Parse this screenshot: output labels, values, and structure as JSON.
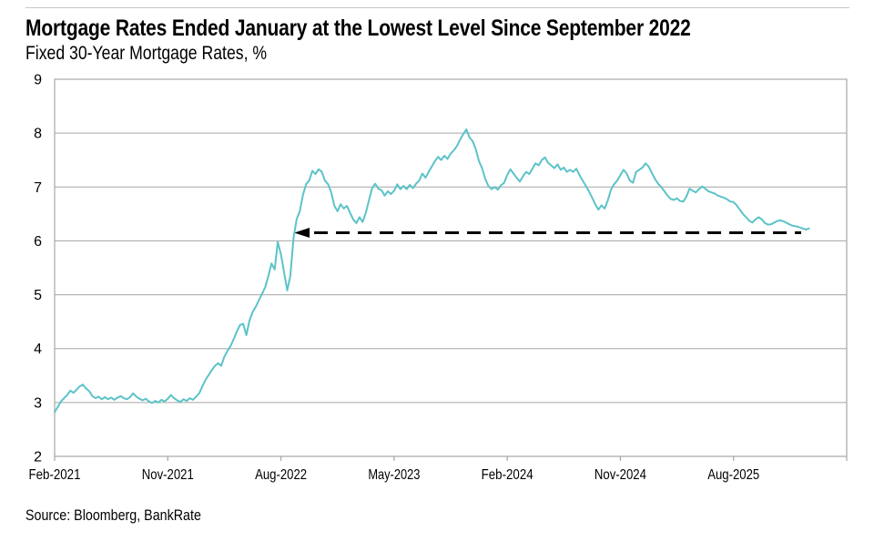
{
  "chart_data": {
    "type": "line",
    "title": "Mortgage Rates Ended January at the Lowest Level Since September 2022",
    "subtitle": "Fixed 30-Year Mortgage Rates, %",
    "source": "Source: Bloomberg, BankRate",
    "unit": "%",
    "ylim": [
      2,
      9
    ],
    "y_ticks": [
      2,
      3,
      4,
      5,
      6,
      7,
      8,
      9
    ],
    "x_tick_labels": [
      "Feb-2021",
      "Nov-2021",
      "Aug-2022",
      "May-2023",
      "Feb-2024",
      "Nov-2024",
      "Aug-2025"
    ],
    "x_tick_months": [
      0,
      9,
      18,
      27,
      36,
      45,
      54
    ],
    "x_right_month": 63,
    "grid": true,
    "axis_color": "#a6a6a6",
    "line_color": "#5cc3c8",
    "annotation": {
      "type": "dashed-arrow-left",
      "value": 6.15,
      "arrow_tip_month": 19.05,
      "to_month": 59.38,
      "color": "#000000"
    },
    "series": [
      {
        "name": "Fixed 30-Year Mortgage Rate",
        "start_month": 0,
        "step_months": 0.25,
        "values": [
          2.82,
          2.92,
          3.02,
          3.08,
          3.14,
          3.22,
          3.18,
          3.24,
          3.3,
          3.33,
          3.26,
          3.21,
          3.12,
          3.08,
          3.11,
          3.06,
          3.1,
          3.06,
          3.09,
          3.05,
          3.09,
          3.12,
          3.08,
          3.06,
          3.1,
          3.17,
          3.11,
          3.07,
          3.04,
          3.07,
          3.02,
          2.99,
          3.03,
          3.0,
          3.05,
          3.02,
          3.07,
          3.14,
          3.08,
          3.04,
          3.01,
          3.06,
          3.03,
          3.08,
          3.05,
          3.11,
          3.17,
          3.3,
          3.42,
          3.51,
          3.6,
          3.68,
          3.73,
          3.68,
          3.85,
          3.96,
          4.05,
          4.18,
          4.32,
          4.44,
          4.46,
          4.25,
          4.52,
          4.68,
          4.78,
          4.9,
          5.02,
          5.14,
          5.35,
          5.58,
          5.47,
          5.98,
          5.75,
          5.42,
          5.08,
          5.35,
          6.05,
          6.4,
          6.55,
          6.85,
          7.05,
          7.12,
          7.3,
          7.24,
          7.33,
          7.28,
          7.12,
          7.05,
          6.9,
          6.65,
          6.55,
          6.68,
          6.6,
          6.65,
          6.52,
          6.4,
          6.33,
          6.44,
          6.35,
          6.52,
          6.75,
          6.98,
          7.06,
          6.97,
          6.94,
          6.84,
          6.92,
          6.87,
          6.93,
          7.05,
          6.96,
          7.02,
          6.96,
          7.04,
          6.98,
          7.06,
          7.12,
          7.25,
          7.17,
          7.28,
          7.38,
          7.48,
          7.56,
          7.5,
          7.58,
          7.52,
          7.62,
          7.68,
          7.76,
          7.88,
          7.98,
          8.07,
          7.92,
          7.85,
          7.7,
          7.48,
          7.35,
          7.15,
          7.02,
          6.96,
          7.0,
          6.95,
          7.03,
          7.08,
          7.22,
          7.33,
          7.25,
          7.17,
          7.1,
          7.2,
          7.28,
          7.24,
          7.34,
          7.44,
          7.4,
          7.5,
          7.55,
          7.45,
          7.4,
          7.35,
          7.42,
          7.32,
          7.36,
          7.28,
          7.32,
          7.28,
          7.34,
          7.22,
          7.12,
          7.02,
          6.92,
          6.8,
          6.68,
          6.58,
          6.66,
          6.6,
          6.75,
          6.95,
          7.05,
          7.12,
          7.22,
          7.32,
          7.25,
          7.12,
          7.08,
          7.28,
          7.32,
          7.36,
          7.44,
          7.38,
          7.26,
          7.15,
          7.06,
          7.0,
          6.92,
          6.84,
          6.78,
          6.76,
          6.79,
          6.74,
          6.73,
          6.82,
          6.97,
          6.93,
          6.9,
          6.96,
          7.01,
          6.97,
          6.92,
          6.9,
          6.88,
          6.84,
          6.82,
          6.8,
          6.77,
          6.73,
          6.72,
          6.66,
          6.58,
          6.5,
          6.44,
          6.37,
          6.34,
          6.4,
          6.44,
          6.4,
          6.33,
          6.3,
          6.31,
          6.34,
          6.37,
          6.38,
          6.36,
          6.33,
          6.3,
          6.28,
          6.27,
          6.25,
          6.23,
          6.21,
          6.23
        ]
      }
    ]
  }
}
